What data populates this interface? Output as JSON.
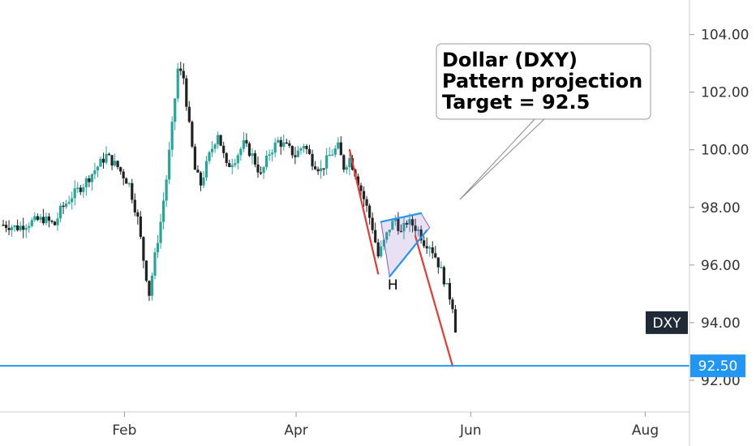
{
  "chart_data": {
    "type": "candlestick",
    "symbol": "DXY",
    "ylim": [
      90.9,
      105.2
    ],
    "xlim": [
      0,
      212
    ],
    "y_ticks": [
      "104.00",
      "102.00",
      "100.00",
      "98.00",
      "96.00",
      "94.00",
      "92.00"
    ],
    "y_tick_values": [
      104,
      102,
      100,
      98,
      96,
      94,
      92
    ],
    "x_ticks": [
      {
        "label": "Feb",
        "day": 31
      },
      {
        "label": "Apr",
        "day": 91
      },
      {
        "label": "Jun",
        "day": 152
      },
      {
        "label": "Aug",
        "day": 213
      }
    ],
    "price_path": [
      [
        0,
        97.4
      ],
      [
        5,
        97.3
      ],
      [
        10,
        97.5
      ],
      [
        14,
        97.6
      ],
      [
        18,
        97.4
      ],
      [
        20,
        97.9
      ],
      [
        24,
        98.4
      ],
      [
        28,
        98.8
      ],
      [
        32,
        99.3
      ],
      [
        36,
        99.8
      ],
      [
        40,
        99.4
      ],
      [
        44,
        98.8
      ],
      [
        47,
        97.6
      ],
      [
        49,
        96.2
      ],
      [
        51,
        95.0
      ],
      [
        53,
        96.3
      ],
      [
        55,
        97.5
      ],
      [
        57,
        99.0
      ],
      [
        59,
        100.8
      ],
      [
        61,
        102.8
      ],
      [
        63,
        102.5
      ],
      [
        65,
        100.8
      ],
      [
        67,
        99.3
      ],
      [
        69,
        98.8
      ],
      [
        72,
        99.8
      ],
      [
        75,
        100.6
      ],
      [
        78,
        99.4
      ],
      [
        81,
        99.7
      ],
      [
        84,
        100.2
      ],
      [
        87,
        99.8
      ],
      [
        90,
        99.1
      ],
      [
        93,
        99.9
      ],
      [
        96,
        100.3
      ],
      [
        99,
        100.1
      ],
      [
        102,
        99.8
      ],
      [
        105,
        100.2
      ],
      [
        108,
        99.6
      ],
      [
        111,
        99.3
      ],
      [
        114,
        99.8
      ],
      [
        117,
        100.1
      ],
      [
        119,
        99.4
      ],
      [
        121,
        99.7
      ],
      [
        123,
        99.2
      ],
      [
        125,
        98.6
      ],
      [
        127,
        98.0
      ],
      [
        129,
        97.3
      ],
      [
        131,
        96.3
      ],
      [
        133,
        96.8
      ],
      [
        135,
        97.3
      ],
      [
        137,
        97.6
      ],
      [
        139,
        97.1
      ],
      [
        141,
        97.5
      ],
      [
        143,
        97.4
      ],
      [
        145,
        97.2
      ],
      [
        147,
        96.8
      ],
      [
        149,
        96.7
      ],
      [
        151,
        96.3
      ],
      [
        153,
        95.8
      ],
      [
        155,
        95.2
      ],
      [
        157,
        94.6
      ],
      [
        158,
        93.8
      ]
    ],
    "pattern_lines": [
      {
        "name": "pole-before",
        "color": "#e53935",
        "points": [
          [
            121,
            100.0
          ],
          [
            131,
            95.7
          ]
        ]
      },
      {
        "name": "pole-projection",
        "color": "#e53935",
        "points": [
          [
            144,
            97.0
          ],
          [
            157,
            92.5
          ]
        ]
      },
      {
        "name": "flag-top",
        "color": "#2196f3",
        "points": [
          [
            132,
            97.5
          ],
          [
            146,
            97.8
          ]
        ]
      },
      {
        "name": "flag-bottom",
        "color": "#2196f3",
        "points": [
          [
            135,
            95.6
          ],
          [
            148,
            97.2
          ]
        ]
      }
    ],
    "target_line": {
      "value": 92.5,
      "label": "92.50",
      "color": "#2196f3"
    },
    "callout": {
      "lines": [
        "Dollar (DXY)",
        "Pattern projection",
        "Target = 92.5"
      ]
    },
    "annotation": {
      "text": "H",
      "day": 136,
      "value": 95.2
    },
    "last_tag": {
      "text": "DXY",
      "value": 94.0
    }
  }
}
